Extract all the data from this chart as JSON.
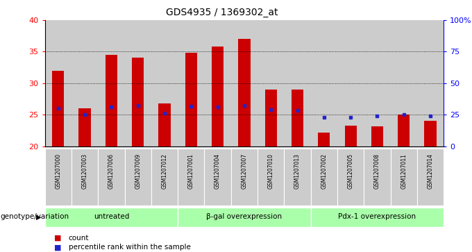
{
  "title": "GDS4935 / 1369302_at",
  "samples": [
    "GSM1207000",
    "GSM1207003",
    "GSM1207006",
    "GSM1207009",
    "GSM1207012",
    "GSM1207001",
    "GSM1207004",
    "GSM1207007",
    "GSM1207010",
    "GSM1207013",
    "GSM1207002",
    "GSM1207005",
    "GSM1207008",
    "GSM1207011",
    "GSM1207014"
  ],
  "counts": [
    32.0,
    26.0,
    34.5,
    34.0,
    26.8,
    34.8,
    35.8,
    37.0,
    29.0,
    29.0,
    22.2,
    23.3,
    23.1,
    25.0,
    24.0
  ],
  "percentile_ranks": [
    26.0,
    25.0,
    26.2,
    26.5,
    25.2,
    26.3,
    26.2,
    26.5,
    25.8,
    25.7,
    24.6,
    24.6,
    24.8,
    25.0,
    24.8
  ],
  "groups": [
    {
      "label": "untreated",
      "start": 0,
      "end": 5
    },
    {
      "label": "β-gal overexpression",
      "start": 5,
      "end": 10
    },
    {
      "label": "Pdx-1 overexpression",
      "start": 10,
      "end": 15
    }
  ],
  "ymin": 20,
  "ymax": 40,
  "yticks_left": [
    20,
    25,
    30,
    35,
    40
  ],
  "yticks_right_labels": [
    "0",
    "25",
    "50",
    "75",
    "100%"
  ],
  "bar_color": "#cc0000",
  "percentile_color": "#2222cc",
  "group_color": "#aaffaa",
  "cell_bg_color": "#cccccc",
  "plot_bg": "#ffffff",
  "xlabel_group": "genotype/variation"
}
